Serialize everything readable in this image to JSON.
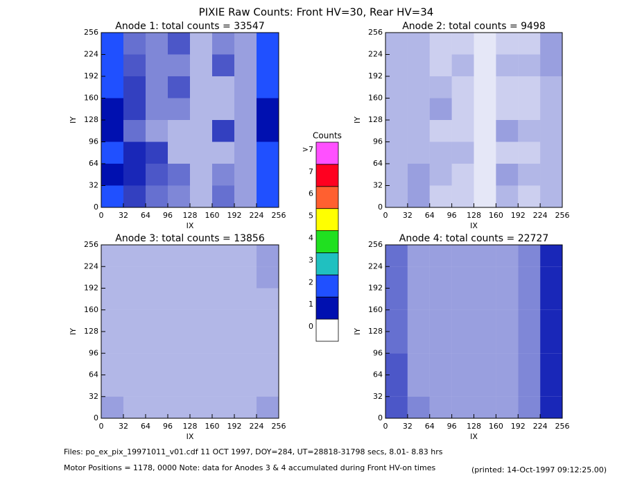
{
  "chart_data": {
    "type": "heatmap",
    "title": "PIXIE Raw Counts:  Front HV=30, Rear HV=34",
    "colorbar": {
      "title": "Counts",
      "levels": [
        0,
        1,
        2,
        3,
        4,
        5,
        6,
        7,
        {
          "value": 8,
          "label": ">7"
        }
      ],
      "colors": [
        "#ffffff",
        "#0010b0",
        "#2050ff",
        "#20c0c0",
        "#20e020",
        "#ffff00",
        "#ff6030",
        "#ff0020",
        "#ff50ff"
      ]
    },
    "panels": [
      {
        "title": "Anode 1: total counts = 33547",
        "xlabel": "IX",
        "ylabel": "IY",
        "xlim": [
          0,
          256
        ],
        "ylim": [
          0,
          256
        ],
        "xticks": [
          0,
          32,
          64,
          96,
          128,
          160,
          192,
          224,
          256
        ],
        "yticks": [
          0,
          32,
          64,
          96,
          128,
          160,
          192,
          224,
          256
        ],
        "density": [
          [
            1.2,
            0.8,
            0.6,
            0.5,
            0.3,
            0.6,
            0.4,
            1.2
          ],
          [
            1.0,
            0.9,
            0.7,
            0.6,
            0.3,
            0.5,
            0.4,
            1.1
          ],
          [
            1.2,
            0.9,
            0.8,
            0.3,
            0.3,
            0.3,
            0.4,
            1.2
          ],
          [
            1.0,
            0.6,
            0.4,
            0.3,
            0.3,
            0.8,
            0.4,
            1.0
          ],
          [
            1.0,
            0.8,
            0.5,
            0.5,
            0.3,
            0.3,
            0.4,
            1.0
          ],
          [
            1.1,
            0.8,
            0.5,
            0.7,
            0.3,
            0.3,
            0.4,
            1.1
          ],
          [
            1.2,
            0.7,
            0.5,
            0.5,
            0.3,
            0.7,
            0.4,
            1.2
          ],
          [
            1.1,
            0.6,
            0.5,
            0.7,
            0.3,
            0.5,
            0.4,
            1.2
          ]
        ]
      },
      {
        "title": "Anode 2: total counts = 9498",
        "xlabel": "IX",
        "ylabel": "IY",
        "xlim": [
          0,
          256
        ],
        "ylim": [
          0,
          256
        ],
        "xticks": [
          0,
          32,
          64,
          96,
          128,
          160,
          192,
          224,
          256
        ],
        "yticks": [
          0,
          32,
          64,
          96,
          128,
          160,
          192,
          224,
          256
        ],
        "density": [
          [
            0.3,
            0.4,
            0.2,
            0.2,
            0.1,
            0.3,
            0.2,
            0.3
          ],
          [
            0.3,
            0.4,
            0.3,
            0.2,
            0.1,
            0.4,
            0.3,
            0.3
          ],
          [
            0.3,
            0.3,
            0.3,
            0.3,
            0.1,
            0.2,
            0.2,
            0.3
          ],
          [
            0.3,
            0.3,
            0.2,
            0.2,
            0.1,
            0.4,
            0.3,
            0.3
          ],
          [
            0.3,
            0.3,
            0.4,
            0.2,
            0.1,
            0.2,
            0.2,
            0.3
          ],
          [
            0.3,
            0.3,
            0.3,
            0.2,
            0.1,
            0.2,
            0.2,
            0.3
          ],
          [
            0.3,
            0.3,
            0.2,
            0.3,
            0.1,
            0.3,
            0.3,
            0.4
          ],
          [
            0.3,
            0.3,
            0.2,
            0.2,
            0.1,
            0.2,
            0.2,
            0.4
          ]
        ]
      },
      {
        "title": "Anode 3: total counts = 13856",
        "xlabel": "IX",
        "ylabel": "IY",
        "xlim": [
          0,
          256
        ],
        "ylim": [
          0,
          256
        ],
        "xticks": [
          0,
          32,
          64,
          96,
          128,
          160,
          192,
          224,
          256
        ],
        "yticks": [
          0,
          32,
          64,
          96,
          128,
          160,
          192,
          224,
          256
        ],
        "density": [
          [
            0.4,
            0.3,
            0.3,
            0.3,
            0.3,
            0.3,
            0.3,
            0.4
          ],
          [
            0.3,
            0.3,
            0.3,
            0.3,
            0.3,
            0.3,
            0.3,
            0.3
          ],
          [
            0.3,
            0.3,
            0.3,
            0.3,
            0.3,
            0.3,
            0.3,
            0.3
          ],
          [
            0.3,
            0.3,
            0.3,
            0.3,
            0.3,
            0.3,
            0.3,
            0.3
          ],
          [
            0.3,
            0.3,
            0.3,
            0.3,
            0.3,
            0.3,
            0.3,
            0.3
          ],
          [
            0.3,
            0.3,
            0.3,
            0.3,
            0.3,
            0.3,
            0.3,
            0.3
          ],
          [
            0.3,
            0.3,
            0.3,
            0.3,
            0.3,
            0.3,
            0.3,
            0.4
          ],
          [
            0.3,
            0.3,
            0.3,
            0.3,
            0.3,
            0.3,
            0.3,
            0.4
          ]
        ]
      },
      {
        "title": "Anode 4: total counts = 22727",
        "xlabel": "IX",
        "ylabel": "IY",
        "xlim": [
          0,
          256
        ],
        "ylim": [
          0,
          256
        ],
        "xticks": [
          0,
          32,
          64,
          96,
          128,
          160,
          192,
          224,
          256
        ],
        "yticks": [
          0,
          32,
          64,
          96,
          128,
          160,
          192,
          224,
          256
        ],
        "density": [
          [
            0.7,
            0.5,
            0.4,
            0.4,
            0.4,
            0.4,
            0.5,
            0.9
          ],
          [
            0.7,
            0.4,
            0.4,
            0.4,
            0.4,
            0.4,
            0.5,
            0.9
          ],
          [
            0.7,
            0.4,
            0.4,
            0.4,
            0.4,
            0.4,
            0.5,
            0.9
          ],
          [
            0.6,
            0.4,
            0.4,
            0.4,
            0.4,
            0.4,
            0.5,
            0.9
          ],
          [
            0.6,
            0.4,
            0.4,
            0.4,
            0.4,
            0.4,
            0.5,
            0.9
          ],
          [
            0.6,
            0.4,
            0.4,
            0.4,
            0.4,
            0.4,
            0.5,
            0.9
          ],
          [
            0.6,
            0.4,
            0.4,
            0.4,
            0.4,
            0.4,
            0.5,
            0.9
          ],
          [
            0.6,
            0.4,
            0.4,
            0.4,
            0.4,
            0.4,
            0.5,
            0.9
          ]
        ]
      }
    ],
    "footer": {
      "files": "Files: po_ex_pix_19971011_v01.cdf    11 OCT 1997, DOY=284, UT=28818-31798 secs,  8.01- 8.83 hrs",
      "motor": "Motor Positions = 1178, 0000    Note: data for Anodes 3 & 4 accumulated during Front HV-on times",
      "printed": "(printed: 14-Oct-1997 09:12:25.00)"
    }
  }
}
